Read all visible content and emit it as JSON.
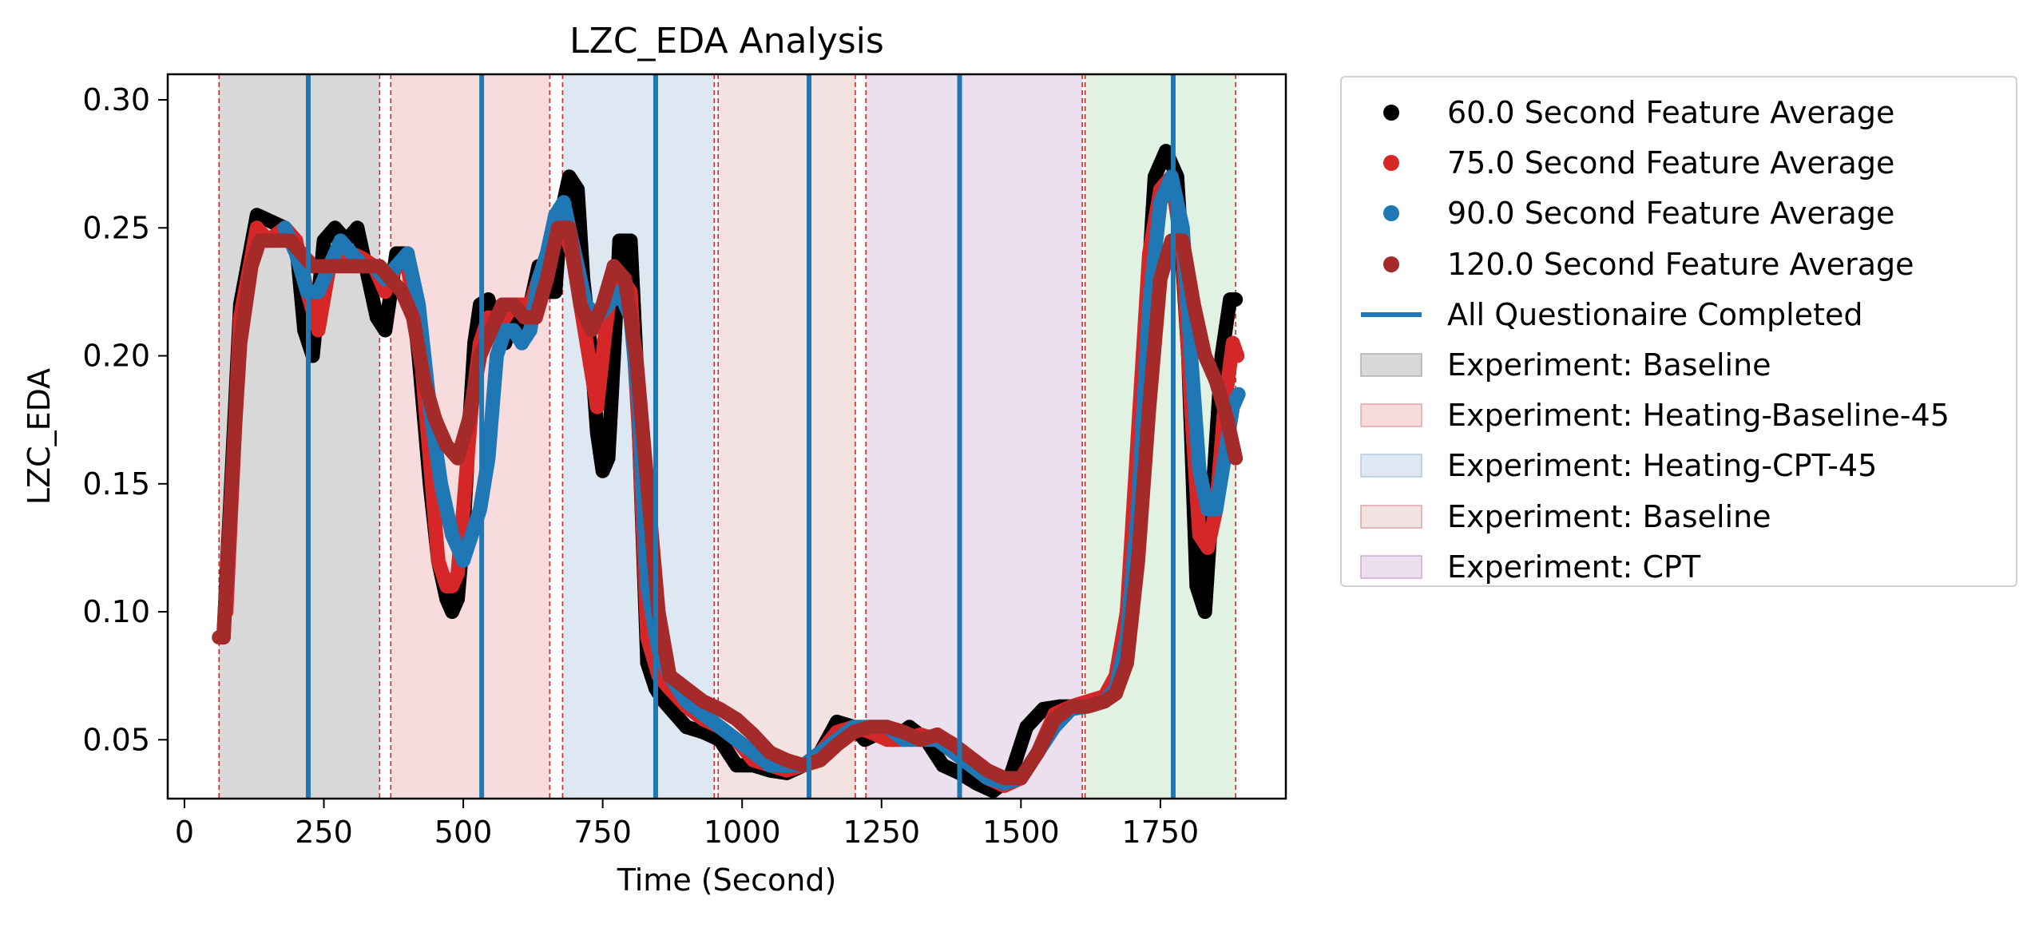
{
  "chart_data": {
    "type": "scatter",
    "title": "LZC_EDA Analysis",
    "xlabel": "Time (Second)",
    "ylabel": "LZC_EDA",
    "xlim": [
      -30,
      1975
    ],
    "ylim": [
      0.027,
      0.31
    ],
    "xticks": [
      0,
      250,
      500,
      750,
      1000,
      1250,
      1500,
      1750
    ],
    "yticks": [
      0.05,
      0.1,
      0.15,
      0.2,
      0.25,
      0.3
    ],
    "xtick_labels": [
      "0",
      "250",
      "500",
      "750",
      "1000",
      "1250",
      "1500",
      "1750"
    ],
    "ytick_labels": [
      "0.05",
      "0.10",
      "0.15",
      "0.20",
      "0.25",
      "0.30"
    ],
    "grid": false,
    "legend_position": "outside-right",
    "regions": [
      {
        "label": "Experiment: Baseline",
        "x0": 62,
        "x1": 350,
        "color": "#a9a9a9",
        "alpha": 0.45
      },
      {
        "label": "Experiment: Heating-Baseline-45",
        "x0": 370,
        "x1": 655,
        "color": "#ea9b9e",
        "alpha": 0.35
      },
      {
        "label": "Experiment: Heating-CPT-45",
        "x0": 678,
        "x1": 950,
        "color": "#abc6e0",
        "alpha": 0.4
      },
      {
        "label": "Experiment: Baseline",
        "x0": 957,
        "x1": 1203,
        "color": "#d79e9e",
        "alpha": 0.3
      },
      {
        "label": "Experiment: CPT",
        "x0": 1222,
        "x1": 1610,
        "color": "#c9a2cf",
        "alpha": 0.35
      },
      {
        "label": "",
        "x0": 1615,
        "x1": 1885,
        "color": "#9ed49e",
        "alpha": 0.3
      }
    ],
    "boundaries": [
      62,
      350,
      370,
      655,
      678,
      950,
      957,
      1203,
      1222,
      1610,
      1615,
      1885
    ],
    "questionnaire_lines": {
      "label": "All Questionaire Completed",
      "color": "#1f77b4",
      "x": [
        222,
        533,
        845,
        1120,
        1390,
        1773
      ]
    },
    "series": [
      {
        "name": "60.0 Second Feature Average",
        "color": "#000000",
        "x": [
          70,
          100,
          130,
          150,
          180,
          200,
          215,
          230,
          250,
          270,
          290,
          310,
          330,
          345,
          360,
          380,
          400,
          420,
          440,
          455,
          470,
          480,
          490,
          500,
          510,
          520,
          530,
          545,
          560,
          575,
          590,
          605,
          620,
          635,
          650,
          665,
          675,
          690,
          705,
          715,
          730,
          740,
          750,
          760,
          770,
          780,
          790,
          800,
          810,
          820,
          830,
          845,
          860,
          880,
          900,
          930,
          960,
          990,
          1020,
          1050,
          1080,
          1110,
          1140,
          1170,
          1200,
          1220,
          1240,
          1270,
          1300,
          1330,
          1360,
          1390,
          1420,
          1450,
          1480,
          1510,
          1540,
          1570,
          1600,
          1630,
          1660,
          1680,
          1700,
          1720,
          1740,
          1760,
          1780,
          1800,
          1815,
          1830,
          1845,
          1860,
          1875,
          1885
        ],
        "y": [
          0.09,
          0.22,
          0.255,
          0.253,
          0.25,
          0.245,
          0.21,
          0.2,
          0.245,
          0.25,
          0.245,
          0.25,
          0.23,
          0.215,
          0.21,
          0.24,
          0.24,
          0.2,
          0.15,
          0.12,
          0.105,
          0.1,
          0.105,
          0.13,
          0.17,
          0.205,
          0.22,
          0.222,
          0.21,
          0.205,
          0.215,
          0.205,
          0.22,
          0.235,
          0.225,
          0.225,
          0.255,
          0.27,
          0.265,
          0.23,
          0.2,
          0.17,
          0.155,
          0.16,
          0.2,
          0.245,
          0.245,
          0.245,
          0.2,
          0.14,
          0.08,
          0.07,
          0.065,
          0.06,
          0.055,
          0.053,
          0.05,
          0.04,
          0.04,
          0.038,
          0.037,
          0.04,
          0.045,
          0.057,
          0.055,
          0.05,
          0.052,
          0.05,
          0.055,
          0.05,
          0.04,
          0.037,
          0.033,
          0.03,
          0.035,
          0.055,
          0.062,
          0.063,
          0.063,
          0.065,
          0.068,
          0.08,
          0.12,
          0.2,
          0.27,
          0.28,
          0.27,
          0.2,
          0.11,
          0.1,
          0.15,
          0.2,
          0.222,
          0.222
        ]
      },
      {
        "name": "75.0 Second Feature Average",
        "color": "#d62728",
        "x": [
          75,
          100,
          130,
          150,
          180,
          200,
          220,
          240,
          260,
          280,
          300,
          320,
          340,
          360,
          380,
          400,
          420,
          440,
          455,
          470,
          480,
          490,
          500,
          515,
          530,
          545,
          560,
          575,
          590,
          605,
          620,
          635,
          650,
          665,
          680,
          695,
          710,
          725,
          740,
          755,
          770,
          785,
          800,
          815,
          830,
          850,
          870,
          900,
          930,
          960,
          990,
          1020,
          1050,
          1080,
          1110,
          1140,
          1170,
          1200,
          1230,
          1260,
          1290,
          1320,
          1350,
          1380,
          1410,
          1440,
          1470,
          1500,
          1530,
          1560,
          1590,
          1620,
          1650,
          1670,
          1690,
          1710,
          1730,
          1750,
          1770,
          1790,
          1805,
          1820,
          1835,
          1850,
          1865,
          1880,
          1888
        ],
        "y": [
          0.1,
          0.215,
          0.25,
          0.245,
          0.25,
          0.245,
          0.225,
          0.21,
          0.235,
          0.24,
          0.24,
          0.238,
          0.235,
          0.225,
          0.235,
          0.235,
          0.21,
          0.16,
          0.12,
          0.11,
          0.11,
          0.115,
          0.14,
          0.18,
          0.205,
          0.215,
          0.212,
          0.215,
          0.22,
          0.22,
          0.22,
          0.23,
          0.235,
          0.245,
          0.25,
          0.24,
          0.22,
          0.2,
          0.18,
          0.21,
          0.235,
          0.23,
          0.225,
          0.17,
          0.09,
          0.075,
          0.07,
          0.063,
          0.058,
          0.055,
          0.05,
          0.042,
          0.04,
          0.038,
          0.04,
          0.045,
          0.053,
          0.055,
          0.053,
          0.05,
          0.05,
          0.052,
          0.05,
          0.045,
          0.04,
          0.035,
          0.032,
          0.035,
          0.045,
          0.06,
          0.063,
          0.065,
          0.067,
          0.075,
          0.1,
          0.17,
          0.24,
          0.265,
          0.27,
          0.24,
          0.18,
          0.13,
          0.125,
          0.14,
          0.18,
          0.205,
          0.2
        ]
      },
      {
        "name": "90.0 Second Feature Average",
        "color": "#1f77b4",
        "x": [
          180,
          200,
          220,
          240,
          260,
          280,
          300,
          320,
          340,
          360,
          380,
          400,
          420,
          440,
          460,
          480,
          500,
          515,
          530,
          545,
          560,
          575,
          590,
          605,
          620,
          635,
          650,
          665,
          680,
          700,
          720,
          740,
          760,
          780,
          800,
          815,
          830,
          850,
          870,
          900,
          930,
          960,
          990,
          1020,
          1050,
          1080,
          1110,
          1140,
          1170,
          1200,
          1230,
          1260,
          1290,
          1320,
          1350,
          1380,
          1410,
          1440,
          1470,
          1500,
          1530,
          1560,
          1590,
          1620,
          1650,
          1670,
          1690,
          1710,
          1730,
          1750,
          1770,
          1790,
          1805,
          1820,
          1835,
          1850,
          1865,
          1880,
          1890
        ],
        "y": [
          0.25,
          0.24,
          0.225,
          0.225,
          0.235,
          0.245,
          0.24,
          0.235,
          0.235,
          0.23,
          0.235,
          0.24,
          0.22,
          0.18,
          0.15,
          0.13,
          0.12,
          0.13,
          0.14,
          0.16,
          0.2,
          0.21,
          0.21,
          0.205,
          0.21,
          0.23,
          0.24,
          0.255,
          0.26,
          0.24,
          0.22,
          0.215,
          0.22,
          0.225,
          0.215,
          0.18,
          0.11,
          0.085,
          0.075,
          0.065,
          0.06,
          0.055,
          0.05,
          0.045,
          0.04,
          0.04,
          0.04,
          0.045,
          0.05,
          0.055,
          0.055,
          0.055,
          0.05,
          0.05,
          0.05,
          0.045,
          0.04,
          0.035,
          0.033,
          0.035,
          0.045,
          0.055,
          0.062,
          0.063,
          0.065,
          0.07,
          0.09,
          0.14,
          0.22,
          0.26,
          0.27,
          0.25,
          0.2,
          0.155,
          0.14,
          0.14,
          0.16,
          0.18,
          0.185
        ]
      },
      {
        "name": "120.0 Second Feature Average",
        "color": "#a52a2a",
        "x": [
          62,
          70,
          80,
          90,
          100,
          110,
          120,
          135,
          150,
          170,
          190,
          210,
          230,
          250,
          270,
          290,
          310,
          330,
          350,
          370,
          390,
          410,
          430,
          450,
          470,
          490,
          510,
          530,
          550,
          570,
          590,
          610,
          630,
          650,
          670,
          690,
          710,
          730,
          750,
          770,
          790,
          810,
          830,
          850,
          870,
          900,
          930,
          960,
          990,
          1020,
          1050,
          1080,
          1110,
          1140,
          1170,
          1200,
          1230,
          1260,
          1290,
          1320,
          1350,
          1380,
          1410,
          1440,
          1470,
          1500,
          1530,
          1560,
          1590,
          1620,
          1650,
          1670,
          1690,
          1710,
          1730,
          1750,
          1770,
          1790,
          1810,
          1830,
          1850,
          1870,
          1885
        ],
        "y": [
          0.09,
          0.09,
          0.13,
          0.17,
          0.205,
          0.22,
          0.235,
          0.245,
          0.245,
          0.245,
          0.245,
          0.24,
          0.235,
          0.235,
          0.235,
          0.235,
          0.235,
          0.235,
          0.235,
          0.23,
          0.225,
          0.215,
          0.19,
          0.175,
          0.165,
          0.16,
          0.175,
          0.2,
          0.21,
          0.22,
          0.22,
          0.215,
          0.215,
          0.23,
          0.25,
          0.25,
          0.22,
          0.21,
          0.22,
          0.235,
          0.23,
          0.2,
          0.15,
          0.1,
          0.075,
          0.07,
          0.065,
          0.062,
          0.058,
          0.052,
          0.045,
          0.042,
          0.04,
          0.042,
          0.048,
          0.053,
          0.055,
          0.055,
          0.053,
          0.05,
          0.052,
          0.048,
          0.043,
          0.038,
          0.035,
          0.035,
          0.045,
          0.058,
          0.063,
          0.063,
          0.065,
          0.068,
          0.08,
          0.12,
          0.18,
          0.23,
          0.245,
          0.245,
          0.22,
          0.2,
          0.19,
          0.175,
          0.16
        ]
      }
    ],
    "legend": [
      {
        "kind": "marker",
        "label": "60.0 Second Feature Average",
        "color": "#000000"
      },
      {
        "kind": "marker",
        "label": "75.0 Second Feature Average",
        "color": "#d62728"
      },
      {
        "kind": "marker",
        "label": "90.0 Second Feature Average",
        "color": "#1f77b4"
      },
      {
        "kind": "marker",
        "label": "120.0 Second Feature Average",
        "color": "#a52a2a"
      },
      {
        "kind": "line",
        "label": "All Questionaire Completed",
        "color": "#1f77b4"
      },
      {
        "kind": "patch",
        "label": "Experiment: Baseline",
        "color": "#a9a9a9",
        "alpha": 0.45
      },
      {
        "kind": "patch",
        "label": "Experiment: Heating-Baseline-45",
        "color": "#ea9b9e",
        "alpha": 0.35
      },
      {
        "kind": "patch",
        "label": "Experiment: Heating-CPT-45",
        "color": "#abc6e0",
        "alpha": 0.4
      },
      {
        "kind": "patch",
        "label": "Experiment: Baseline",
        "color": "#d79e9e",
        "alpha": 0.3
      },
      {
        "kind": "patch",
        "label": "Experiment: CPT",
        "color": "#c9a2cf",
        "alpha": 0.35
      }
    ]
  }
}
